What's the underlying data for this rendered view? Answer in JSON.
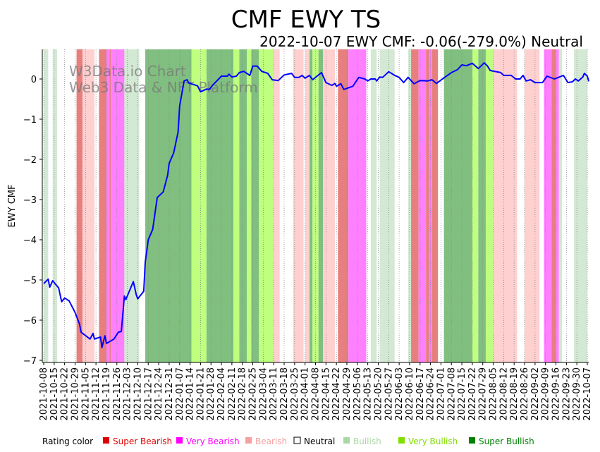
{
  "chart_data": {
    "type": "line",
    "title": "CMF EWY TS",
    "subtitle": "2022-10-07 EWY CMF: -0.06(-279.0%) Neutral",
    "xlabel": "",
    "ylabel": "EWY CMF",
    "watermark": [
      "W3Data.io Chart",
      "Web3 Data & NFT Platform"
    ],
    "x_start_date": "2021-10-08",
    "x_unit": "days since 2021-10-08",
    "xlim_days": [
      0,
      364
    ],
    "ylim": [
      -7.05,
      0.74
    ],
    "yticks": [
      0,
      -1,
      -2,
      -3,
      -4,
      -5,
      -6,
      -7
    ],
    "xtick_labels": [
      "2021-10-08",
      "2021-10-15",
      "2021-10-22",
      "2021-10-29",
      "2021-11-05",
      "2021-11-12",
      "2021-11-19",
      "2021-11-26",
      "2021-12-03",
      "2021-12-10",
      "2021-12-17",
      "2021-12-24",
      "2021-12-31",
      "2022-01-07",
      "2022-01-14",
      "2022-01-21",
      "2022-01-28",
      "2022-02-04",
      "2022-02-11",
      "2022-02-18",
      "2022-02-25",
      "2022-03-04",
      "2022-03-11",
      "2022-03-18",
      "2022-03-25",
      "2022-04-01",
      "2022-04-08",
      "2022-04-15",
      "2022-04-22",
      "2022-04-29",
      "2022-05-06",
      "2022-05-13",
      "2022-05-20",
      "2022-05-27",
      "2022-06-03",
      "2022-06-10",
      "2022-06-17",
      "2022-06-24",
      "2022-07-01",
      "2022-07-08",
      "2022-07-15",
      "2022-07-22",
      "2022-07-29",
      "2022-08-05",
      "2022-08-12",
      "2022-08-19",
      "2022-08-26",
      "2022-09-02",
      "2022-09-09",
      "2022-09-16",
      "2022-09-23",
      "2022-09-30",
      "2022-10-07"
    ],
    "grid": "vertical dotted at weekly ticks",
    "series": [
      {
        "name": "EWY CMF",
        "color": "#0000ff",
        "points": [
          [
            0,
            -5.09
          ],
          [
            3,
            -4.98
          ],
          [
            4,
            -5.18
          ],
          [
            6,
            -5.02
          ],
          [
            10,
            -5.2
          ],
          [
            12,
            -5.54
          ],
          [
            14,
            -5.45
          ],
          [
            17,
            -5.52
          ],
          [
            21,
            -5.81
          ],
          [
            24,
            -6.1
          ],
          [
            25,
            -6.3
          ],
          [
            31,
            -6.47
          ],
          [
            33,
            -6.33
          ],
          [
            34,
            -6.47
          ],
          [
            38,
            -6.42
          ],
          [
            39,
            -6.68
          ],
          [
            41,
            -6.39
          ],
          [
            42,
            -6.58
          ],
          [
            47,
            -6.47
          ],
          [
            50,
            -6.3
          ],
          [
            52,
            -6.28
          ],
          [
            54,
            -5.4
          ],
          [
            55,
            -5.49
          ],
          [
            60,
            -5.04
          ],
          [
            62,
            -5.37
          ],
          [
            63,
            -5.47
          ],
          [
            67,
            -5.28
          ],
          [
            68,
            -4.56
          ],
          [
            70,
            -4.0
          ],
          [
            73,
            -3.74
          ],
          [
            76,
            -2.95
          ],
          [
            80,
            -2.81
          ],
          [
            83,
            -2.39
          ],
          [
            84,
            -2.1
          ],
          [
            87,
            -1.84
          ],
          [
            90,
            -1.32
          ],
          [
            91,
            -0.67
          ],
          [
            94,
            -0.05
          ],
          [
            96,
            -0.02
          ],
          [
            97,
            -0.1
          ],
          [
            103,
            -0.17
          ],
          [
            105,
            -0.32
          ],
          [
            109,
            -0.25
          ],
          [
            111,
            -0.26
          ],
          [
            113,
            -0.16
          ],
          [
            119,
            0.07
          ],
          [
            123,
            0.07
          ],
          [
            124,
            0.12
          ],
          [
            126,
            0.05
          ],
          [
            129,
            0.07
          ],
          [
            131,
            0.16
          ],
          [
            134,
            0.19
          ],
          [
            138,
            0.09
          ],
          [
            140,
            0.32
          ],
          [
            143,
            0.32
          ],
          [
            146,
            0.19
          ],
          [
            150,
            0.14
          ],
          [
            153,
            -0.02
          ],
          [
            157,
            -0.04
          ],
          [
            161,
            0.1
          ],
          [
            166,
            0.14
          ],
          [
            168,
            0.04
          ],
          [
            171,
            0.04
          ],
          [
            173,
            0.09
          ],
          [
            175,
            0.02
          ],
          [
            178,
            0.09
          ],
          [
            180,
            -0.02
          ],
          [
            186,
            0.16
          ],
          [
            189,
            -0.09
          ],
          [
            193,
            -0.16
          ],
          [
            195,
            -0.11
          ],
          [
            196,
            -0.18
          ],
          [
            199,
            -0.12
          ],
          [
            201,
            -0.26
          ],
          [
            207,
            -0.18
          ],
          [
            211,
            0.04
          ],
          [
            215,
            0.0
          ],
          [
            217,
            -0.05
          ],
          [
            219,
            0.0
          ],
          [
            222,
            0.0
          ],
          [
            223,
            -0.05
          ],
          [
            225,
            0.05
          ],
          [
            227,
            0.04
          ],
          [
            231,
            0.18
          ],
          [
            235,
            0.09
          ],
          [
            238,
            0.04
          ],
          [
            241,
            -0.09
          ],
          [
            244,
            0.04
          ],
          [
            248,
            -0.12
          ],
          [
            252,
            -0.04
          ],
          [
            257,
            -0.05
          ],
          [
            260,
            -0.02
          ],
          [
            263,
            -0.11
          ],
          [
            267,
            0.0
          ],
          [
            273,
            0.16
          ],
          [
            277,
            0.23
          ],
          [
            280,
            0.35
          ],
          [
            283,
            0.33
          ],
          [
            287,
            0.39
          ],
          [
            291,
            0.26
          ],
          [
            295,
            0.4
          ],
          [
            297,
            0.33
          ],
          [
            299,
            0.21
          ],
          [
            306,
            0.16
          ],
          [
            308,
            0.09
          ],
          [
            313,
            0.09
          ],
          [
            316,
            0.0
          ],
          [
            319,
            0.0
          ],
          [
            321,
            0.09
          ],
          [
            323,
            -0.05
          ],
          [
            326,
            -0.02
          ],
          [
            329,
            -0.09
          ],
          [
            334,
            -0.09
          ],
          [
            337,
            0.07
          ],
          [
            342,
            0.0
          ],
          [
            348,
            0.09
          ],
          [
            351,
            -0.09
          ],
          [
            354,
            -0.07
          ],
          [
            356,
            0.0
          ],
          [
            358,
            -0.05
          ],
          [
            361,
            0.05
          ],
          [
            362,
            0.14
          ],
          [
            364,
            0.07
          ],
          [
            365,
            -0.06
          ]
        ]
      }
    ],
    "rating_bands": [
      [
        0,
        3,
        "bullish"
      ],
      [
        6,
        9,
        "bullish"
      ],
      [
        22,
        26,
        "super_bearish"
      ],
      [
        26,
        34,
        "bearish"
      ],
      [
        37,
        42,
        "super_bearish"
      ],
      [
        42,
        44,
        "very_bearish"
      ],
      [
        44,
        45,
        "super_bearish"
      ],
      [
        45,
        54,
        "very_bearish"
      ],
      [
        54,
        64,
        "bullish"
      ],
      [
        68,
        99,
        "super_bullish"
      ],
      [
        99,
        109,
        "very_bullish"
      ],
      [
        109,
        127,
        "super_bullish"
      ],
      [
        127,
        131,
        "very_bullish"
      ],
      [
        131,
        136,
        "super_bullish"
      ],
      [
        136,
        139,
        "very_bullish"
      ],
      [
        139,
        144,
        "super_bullish"
      ],
      [
        144,
        154,
        "very_bullish"
      ],
      [
        154,
        158,
        "bearish"
      ],
      [
        167,
        174,
        "bearish"
      ],
      [
        175,
        178,
        "bearish"
      ],
      [
        178,
        180,
        "super_bullish"
      ],
      [
        180,
        184,
        "very_bullish"
      ],
      [
        184,
        187,
        "super_bullish"
      ],
      [
        187,
        195,
        "bearish"
      ],
      [
        197,
        204,
        "super_bearish"
      ],
      [
        204,
        216,
        "very_bearish"
      ],
      [
        219,
        223,
        "bullish"
      ],
      [
        225,
        235,
        "bullish"
      ],
      [
        244,
        246,
        "bullish"
      ],
      [
        246,
        251,
        "super_bearish"
      ],
      [
        251,
        256,
        "very_bearish"
      ],
      [
        256,
        258,
        "super_bearish"
      ],
      [
        258,
        260,
        "very_bearish"
      ],
      [
        260,
        264,
        "super_bearish"
      ],
      [
        268,
        287,
        "super_bullish"
      ],
      [
        287,
        291,
        "very_bullish"
      ],
      [
        291,
        296,
        "super_bullish"
      ],
      [
        296,
        301,
        "very_bullish"
      ],
      [
        301,
        317,
        "bearish"
      ],
      [
        322,
        332,
        "bearish"
      ],
      [
        335,
        340,
        "very_bearish"
      ],
      [
        340,
        343,
        "super_bearish"
      ],
      [
        343,
        345,
        "very_bearish"
      ],
      [
        345,
        347,
        "bullish"
      ],
      [
        355,
        364,
        "bullish"
      ]
    ],
    "band_colors": {
      "super_bearish": "#e77f7f",
      "very_bearish": "#ff80ff",
      "bearish": "#ffd0d0",
      "bullish": "#d4e9d4",
      "very_bullish": "#bfff7f",
      "super_bullish": "#80bf80"
    },
    "legend": {
      "title": "Rating color",
      "placement": "bottom",
      "items": [
        {
          "key": "super_bearish",
          "label": "Super Bearish",
          "color": "#e00000"
        },
        {
          "key": "very_bearish",
          "label": "Very Bearish",
          "color": "#ff00ff"
        },
        {
          "key": "bearish",
          "label": "Bearish",
          "color": "#f4a0a0"
        },
        {
          "key": "neutral",
          "label": "Neutral",
          "color": "#000000"
        },
        {
          "key": "bullish",
          "label": "Bullish",
          "color": "#a8d8a8"
        },
        {
          "key": "very_bullish",
          "label": "Very Bullish",
          "color": "#7fe000"
        },
        {
          "key": "super_bullish",
          "label": "Super Bullish",
          "color": "#008000"
        }
      ]
    }
  }
}
